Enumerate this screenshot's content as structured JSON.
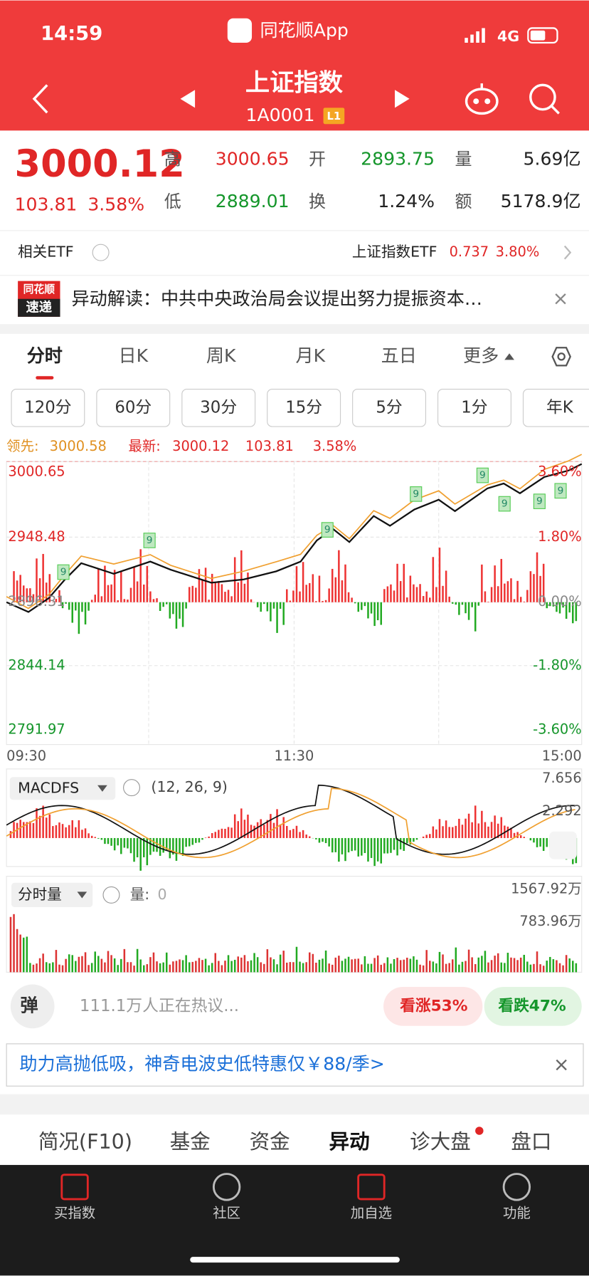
{
  "status_bar": {
    "time": "14:59",
    "app": "同花顺App",
    "network": "4G"
  },
  "header": {
    "title": "上证指数",
    "code": "1A0001",
    "level": "L1"
  },
  "quote": {
    "price": "3000.12",
    "change": "103.81",
    "change_pct": "3.58%",
    "fields": [
      {
        "label": "高",
        "value": "3000.65"
      },
      {
        "label": "开",
        "value": "2893.75"
      },
      {
        "label": "量",
        "value": "5.69亿"
      },
      {
        "label": "低",
        "value": "2889.01"
      },
      {
        "label": "换",
        "value": "1.24%"
      },
      {
        "label": "额",
        "value": "5178.9亿"
      }
    ]
  },
  "etf": {
    "label": "相关ETF",
    "name": "上证指数ETF",
    "price": "0.737",
    "change_pct": "3.80%"
  },
  "news": {
    "badge_top": "同花顺",
    "badge_bottom": "速递",
    "text": "异动解读：中共中央政治局会议提出努力提振资本…"
  },
  "tabs": [
    "分时",
    "日K",
    "周K",
    "月K",
    "五日",
    "更多"
  ],
  "intervals": [
    "120分",
    "60分",
    "30分",
    "15分",
    "5分",
    "1分",
    "年K"
  ],
  "intraday": {
    "legend": {
      "lead_label": "领先:",
      "lead": "3000.58",
      "latest_label": "最新:",
      "latest": "3000.12",
      "change": "103.81",
      "change_pct": "3.58%"
    },
    "price_labels": [
      "3000.65",
      "2948.48",
      "2896.31",
      "2844.14",
      "2791.97"
    ],
    "pct_labels": [
      "3.60%",
      "1.80%",
      "0.00%",
      "-1.80%",
      "-3.60%"
    ],
    "time_labels": [
      "09:30",
      "11:30",
      "15:00"
    ],
    "signal": "9"
  },
  "macd": {
    "name": "MACDFS",
    "params": "(12, 26, 9)",
    "labels": [
      "7.656",
      "2.292"
    ]
  },
  "volume": {
    "name": "分时量",
    "label": "量:",
    "value": "0",
    "labels": [
      "1567.92万",
      "783.96万"
    ]
  },
  "comments": {
    "button": "弹",
    "text": "111.1万人正在热议...",
    "bull": "看涨53%",
    "bear": "看跌47%"
  },
  "ad": "助力高抛低吸，神奇电波史低特惠仅￥88/季>",
  "bottom_tabs": [
    "简况(F10)",
    "基金",
    "资金",
    "异动",
    "诊大盘",
    "盘口"
  ],
  "nav": [
    "买指数",
    "社区",
    "加自选",
    "功能"
  ]
}
